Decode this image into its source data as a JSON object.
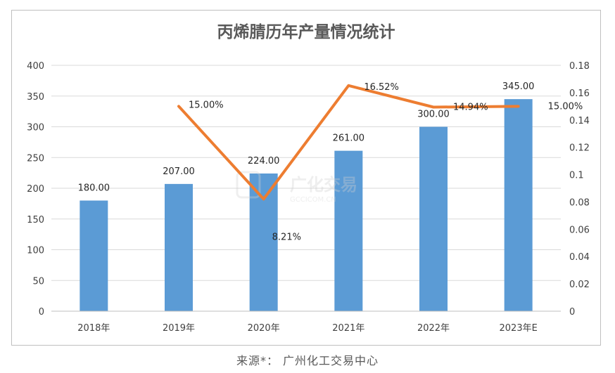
{
  "chart_data": {
    "type": "bar",
    "title": "丙烯腈历年产量情况统计",
    "categories": [
      "2018年",
      "2019年",
      "2020年",
      "2021年",
      "2022年",
      "2023年E"
    ],
    "series": [
      {
        "type": "bar",
        "axis": "left",
        "color": "#5b9bd5",
        "values": [
          180.0,
          207.0,
          224.0,
          261.0,
          300.0,
          345.0
        ],
        "data_labels": [
          "180.00",
          "207.00",
          "224.00",
          "261.00",
          "300.00",
          "345.00"
        ]
      },
      {
        "type": "line",
        "axis": "right",
        "color": "#ed7d31",
        "values": [
          null,
          0.15,
          0.0821,
          0.1652,
          0.1494,
          0.15
        ],
        "data_labels": [
          "",
          "15.00%",
          "8.21%",
          "16.52%",
          "14.94%",
          "15.00%"
        ]
      }
    ],
    "y_left": {
      "min": 0,
      "max": 400,
      "step": 50,
      "tick_labels": [
        "0",
        "50",
        "100",
        "150",
        "200",
        "250",
        "300",
        "350",
        "400"
      ]
    },
    "y_right": {
      "min": 0,
      "max": 0.18,
      "step": 0.02,
      "tick_labels": [
        "0",
        "0.02",
        "0.04",
        "0.06",
        "0.08",
        "0.1",
        "0.12",
        "0.14",
        "0.16",
        "0.18"
      ]
    },
    "grid": true,
    "legend": "none"
  },
  "watermark": {
    "text": "广化交易",
    "subtext": "GCCICOM.CN"
  },
  "source_note": "来源*： 广州化工交易中心"
}
